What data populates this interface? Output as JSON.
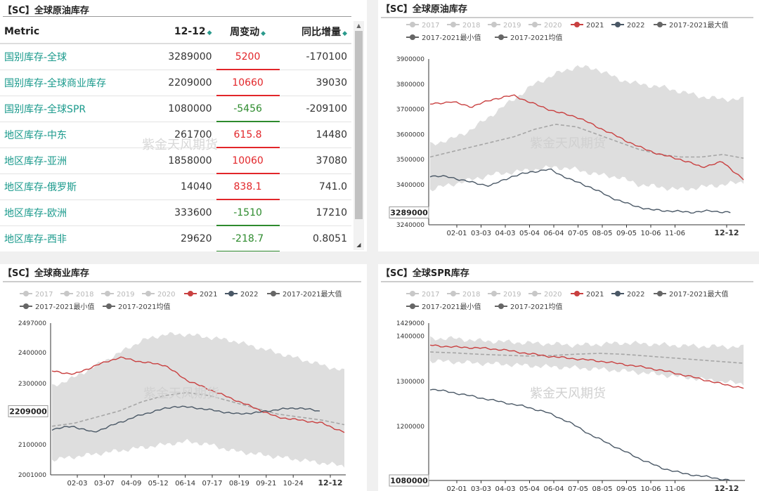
{
  "table_panel": {
    "title": "【SC】全球原油库存",
    "columns": [
      "Metric",
      "12-12",
      "周变动",
      "同比增量"
    ],
    "watermark": "紫金天风期货",
    "rows": [
      {
        "metric": "国别库存-全球",
        "value": "3289000",
        "change": "5200",
        "yoy": "-170100",
        "dir": "up"
      },
      {
        "metric": "国别库存-全球商业库存",
        "value": "2209000",
        "change": "10660",
        "yoy": "39030",
        "dir": "up"
      },
      {
        "metric": "国别库存-全球SPR",
        "value": "1080000",
        "change": "-5456",
        "yoy": "-209100",
        "dir": "down"
      },
      {
        "metric": "地区库存-中东",
        "value": "261700",
        "change": "615.8",
        "yoy": "14480",
        "dir": "up"
      },
      {
        "metric": "地区库存-亚洲",
        "value": "1858000",
        "change": "10060",
        "yoy": "37080",
        "dir": "up"
      },
      {
        "metric": "地区库存-俄罗斯",
        "value": "14040",
        "change": "838.1",
        "yoy": "741.0",
        "dir": "up"
      },
      {
        "metric": "地区库存-欧洲",
        "value": "333600",
        "change": "-1510",
        "yoy": "17210",
        "dir": "down"
      },
      {
        "metric": "地区库存-西非",
        "value": "29620",
        "change": "-218.7",
        "yoy": "0.8051",
        "dir": "down"
      }
    ]
  },
  "colors": {
    "up": "#e2262a",
    "down": "#2e8b2e",
    "teal": "#1a9a8c",
    "y2021": "#c94040",
    "y2022": "#4a5866",
    "band": "#dedede",
    "mean": "#a6a6a6",
    "legend_grey": "#c8c8c8",
    "legend_dark": "#666666"
  },
  "legend": [
    {
      "label": "2017",
      "style": "grey"
    },
    {
      "label": "2018",
      "style": "grey"
    },
    {
      "label": "2019",
      "style": "grey"
    },
    {
      "label": "2020",
      "style": "grey"
    },
    {
      "label": "2021",
      "style": "red"
    },
    {
      "label": "2022",
      "style": "navy"
    },
    {
      "label": "2017-2021最大值",
      "style": "dark"
    },
    {
      "label": "2017-2021最小值",
      "style": "dark"
    },
    {
      "label": "2017-2021均值",
      "style": "dark"
    }
  ],
  "chart_data": [
    {
      "type": "line",
      "title": "【SC】全球原油库存",
      "watermark": "紫金天风期货",
      "ylim": [
        3240000,
        3900000
      ],
      "yticks": [
        3240000,
        3400000,
        3500000,
        3600000,
        3700000,
        3800000,
        3900000
      ],
      "ytick_labels": [
        "3240000",
        "3400000",
        "3500000",
        "3600000",
        "3700000",
        "3800000",
        "3900000"
      ],
      "xticks": [
        "02-01",
        "03-03",
        "04-03",
        "05-04",
        "06-04",
        "07-05",
        "08-05",
        "09-05",
        "10-06",
        "11-06",
        "12-12"
      ],
      "last_label": "3289000",
      "series": [
        {
          "name": "2017-2021最大值",
          "values": [
            3560000,
            3580000,
            3620000,
            3680000,
            3740000,
            3800000,
            3840000,
            3870000,
            3860000,
            3820000,
            3800000,
            3790000,
            3770000,
            3750000,
            3740000,
            3740000
          ]
        },
        {
          "name": "2017-2021最小值",
          "values": [
            3380000,
            3400000,
            3420000,
            3440000,
            3450000,
            3460000,
            3470000,
            3460000,
            3440000,
            3430000,
            3400000,
            3390000,
            3380000,
            3390000,
            3400000,
            3410000
          ]
        },
        {
          "name": "2017-2021均值",
          "values": [
            3510000,
            3530000,
            3550000,
            3570000,
            3590000,
            3620000,
            3640000,
            3630000,
            3600000,
            3570000,
            3540000,
            3520000,
            3510000,
            3510000,
            3520000,
            3505000
          ]
        },
        {
          "name": "2021",
          "values": [
            3720000,
            3730000,
            3710000,
            3740000,
            3755000,
            3720000,
            3690000,
            3670000,
            3630000,
            3590000,
            3550000,
            3520000,
            3500000,
            3470000,
            3490000,
            3420000
          ]
        },
        {
          "name": "2022",
          "values": [
            3435000,
            3430000,
            3410000,
            3395000,
            3430000,
            3450000,
            3460000,
            3420000,
            3390000,
            3350000,
            3320000,
            3300000,
            3295000,
            3290000,
            3295000,
            3289000
          ]
        }
      ]
    },
    {
      "type": "line",
      "title": "【SC】全球商业库存",
      "watermark": "紫金天风期货",
      "ylim": [
        2001000,
        2497000
      ],
      "yticks": [
        2001000,
        2100000,
        2200000,
        2300000,
        2400000,
        2497000
      ],
      "ytick_labels": [
        "2001000",
        "2100000",
        "2200000",
        "2300000",
        "2400000",
        "2497000"
      ],
      "xticks": [
        "02-03",
        "03-07",
        "04-09",
        "05-12",
        "06-14",
        "07-17",
        "08-19",
        "09-21",
        "10-24",
        "12-12"
      ],
      "last_label": "2209000",
      "series": [
        {
          "name": "2017-2021最大值",
          "values": [
            2290000,
            2320000,
            2360000,
            2400000,
            2440000,
            2460000,
            2460000,
            2450000,
            2440000,
            2420000,
            2400000,
            2380000,
            2360000,
            2340000
          ]
        },
        {
          "name": "2017-2021最小值",
          "values": [
            2050000,
            2060000,
            2070000,
            2080000,
            2090000,
            2100000,
            2110000,
            2100000,
            2080000,
            2070000,
            2060000,
            2050000,
            2040000,
            2030000
          ]
        },
        {
          "name": "2017-2021均值",
          "values": [
            2160000,
            2170000,
            2190000,
            2210000,
            2240000,
            2260000,
            2270000,
            2260000,
            2240000,
            2220000,
            2200000,
            2190000,
            2180000,
            2165000
          ]
        },
        {
          "name": "2021",
          "values": [
            2340000,
            2330000,
            2360000,
            2385000,
            2370000,
            2360000,
            2310000,
            2280000,
            2250000,
            2220000,
            2190000,
            2180000,
            2170000,
            2140000
          ]
        },
        {
          "name": "2022",
          "values": [
            2150000,
            2160000,
            2140000,
            2165000,
            2190000,
            2210000,
            2225000,
            2220000,
            2210000,
            2200000,
            2205000,
            2215000,
            2220000,
            2209000
          ]
        }
      ]
    },
    {
      "type": "line",
      "title": "【SC】全球SPR库存",
      "watermark": "紫金天风期货",
      "ylim": [
        1080000,
        1429000
      ],
      "yticks": [
        1080000,
        1200000,
        1300000,
        1400000,
        1429000
      ],
      "ytick_labels": [
        "1080000",
        "1200000",
        "1300000",
        "1400000",
        "1429000"
      ],
      "xticks": [
        "02-01",
        "03-03",
        "04-03",
        "05-04",
        "06-04",
        "07-05",
        "08-05",
        "09-05",
        "10-06",
        "11-06",
        "12-12"
      ],
      "last_label": "1080000",
      "series": [
        {
          "name": "2017-2021最大值",
          "values": [
            1395000,
            1395000,
            1390000,
            1388000,
            1385000,
            1383000,
            1380000,
            1382000,
            1385000,
            1383000,
            1380000,
            1378000,
            1377000,
            1376000
          ]
        },
        {
          "name": "2017-2021最小值",
          "values": [
            1345000,
            1343000,
            1340000,
            1338000,
            1335000,
            1332000,
            1330000,
            1327000,
            1323000,
            1318000,
            1312000,
            1306000,
            1300000,
            1294000
          ]
        },
        {
          "name": "2017-2021均值",
          "values": [
            1365000,
            1363000,
            1360000,
            1358000,
            1356000,
            1357000,
            1360000,
            1362000,
            1360000,
            1356000,
            1352000,
            1348000,
            1344000,
            1340000
          ]
        },
        {
          "name": "2021",
          "values": [
            1380000,
            1376000,
            1374000,
            1370000,
            1362000,
            1355000,
            1350000,
            1345000,
            1338000,
            1330000,
            1320000,
            1308000,
            1295000,
            1285000
          ]
        },
        {
          "name": "2022",
          "values": [
            1283000,
            1275000,
            1265000,
            1255000,
            1245000,
            1232000,
            1210000,
            1180000,
            1155000,
            1130000,
            1108000,
            1095000,
            1088000,
            1080000
          ]
        }
      ]
    }
  ]
}
